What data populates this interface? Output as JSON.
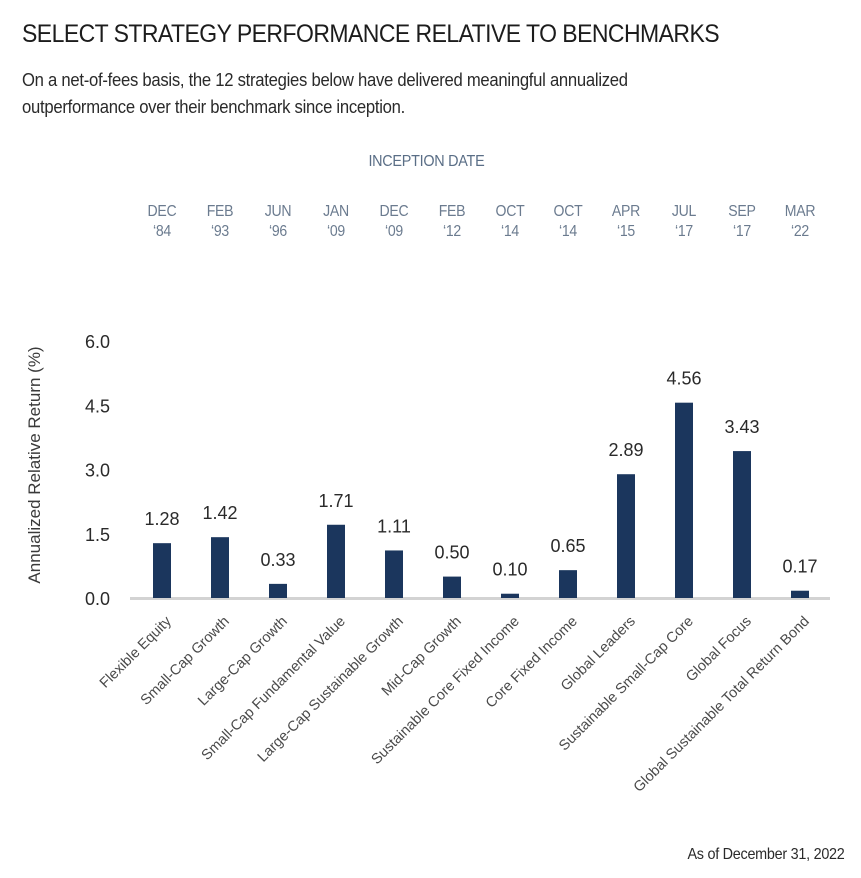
{
  "header": {
    "title": "SELECT STRATEGY PERFORMANCE RELATIVE TO BENCHMARKS",
    "subtitle": "On a net-of-fees basis, the 12 strategies below have delivered meaningful annualized outperformance over their benchmark since inception."
  },
  "inception": {
    "header": "INCEPTION DATE",
    "dates": [
      {
        "month": "DEC",
        "year": "‘84"
      },
      {
        "month": "FEB",
        "year": "‘93"
      },
      {
        "month": "JUN",
        "year": "‘96"
      },
      {
        "month": "JAN",
        "year": "‘09"
      },
      {
        "month": "DEC",
        "year": "‘09"
      },
      {
        "month": "FEB",
        "year": "‘12"
      },
      {
        "month": "OCT",
        "year": "‘14"
      },
      {
        "month": "OCT",
        "year": "‘14"
      },
      {
        "month": "APR",
        "year": "‘15"
      },
      {
        "month": "JUL",
        "year": "‘17"
      },
      {
        "month": "SEP",
        "year": "‘17"
      },
      {
        "month": "MAR",
        "year": "‘22"
      }
    ]
  },
  "colors": {
    "bar": "#1b365d",
    "baseline": "#d3d3d3",
    "inception_text": "#5a6e86"
  },
  "chart_data": {
    "type": "bar",
    "title": "SELECT STRATEGY PERFORMANCE RELATIVE TO BENCHMARKS",
    "xlabel": "",
    "ylabel": "Annualized Relative Return (%)",
    "ylim": [
      0,
      6.0
    ],
    "yticks": [
      "0.0",
      "1.5",
      "3.0",
      "4.5",
      "6.0"
    ],
    "ytick_values": [
      0,
      1.5,
      3.0,
      4.5,
      6.0
    ],
    "grid": false,
    "categories": [
      "Flexible Equity",
      "Small-Cap Growth",
      "Large-Cap Growth",
      "Small-Cap Fundamental Value",
      "Large-Cap Sustainable Growth",
      "Mid-Cap Growth",
      "Sustainable Core Fixed Income",
      "Core Fixed Income",
      "Global Leaders",
      "Sustainable Small-Cap Core",
      "Global Focus",
      "Global Sustainable Total Return Bond"
    ],
    "values": [
      1.28,
      1.42,
      0.33,
      1.71,
      1.11,
      0.5,
      0.1,
      0.65,
      2.89,
      4.56,
      3.43,
      0.17
    ],
    "value_labels": [
      "1.28",
      "1.42",
      "0.33",
      "1.71",
      "1.11",
      "0.50",
      "0.10",
      "0.65",
      "2.89",
      "4.56",
      "3.43",
      "0.17"
    ]
  },
  "footnote": "As of December 31, 2022"
}
